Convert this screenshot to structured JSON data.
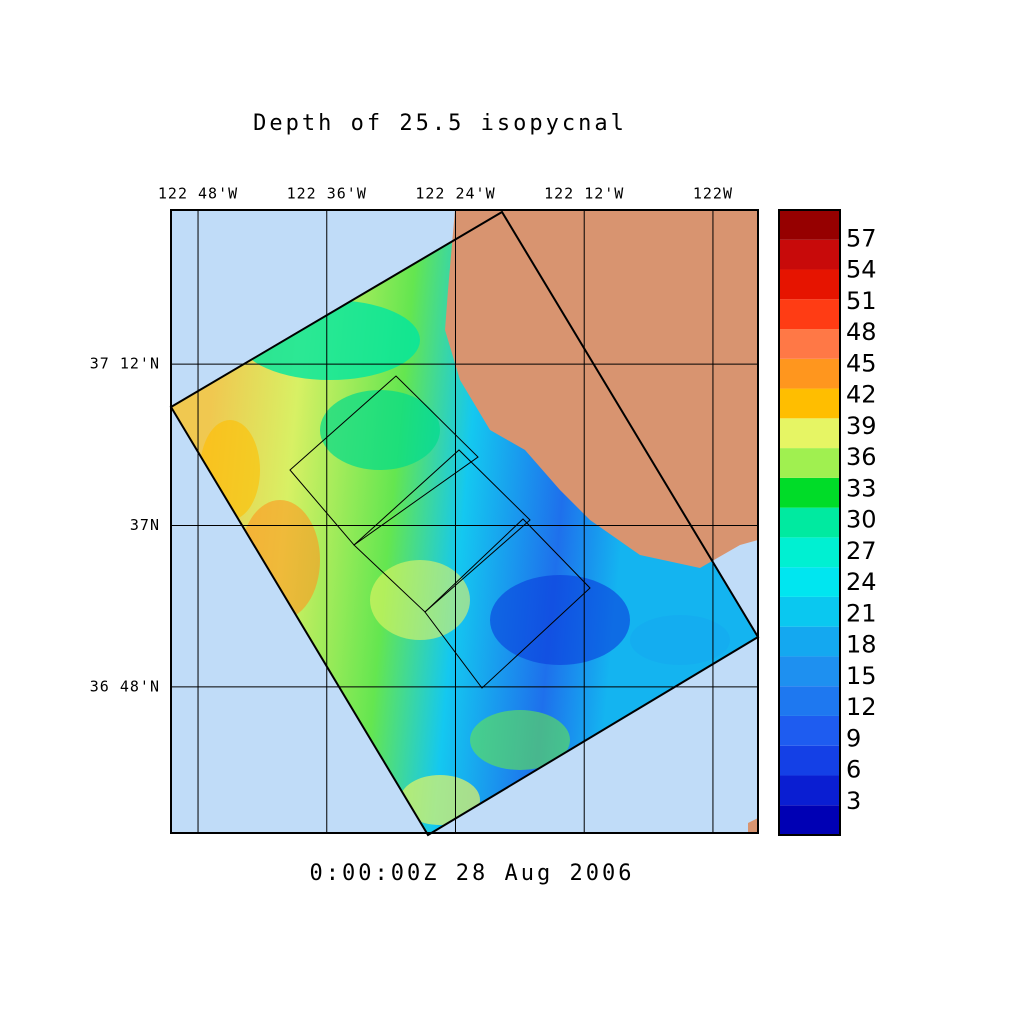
{
  "chart_data": {
    "type": "map",
    "title": "Depth of 25.5 isopycnal",
    "timestamp": "0:00:00Z  28 Aug 2006",
    "xlim": [
      -122.842,
      -121.93
    ],
    "ylim": [
      36.619,
      37.391
    ],
    "xticks": [
      {
        "value": -122.8,
        "label": "122 48'W"
      },
      {
        "value": -122.6,
        "label": "122 36'W"
      },
      {
        "value": -122.4,
        "label": "122 24'W"
      },
      {
        "value": -122.2,
        "label": "122 12'W"
      },
      {
        "value": -122.0,
        "label": "122W"
      }
    ],
    "yticks": [
      {
        "value": 37.2,
        "label": "37 12'N"
      },
      {
        "value": 37.0,
        "label": "37N"
      },
      {
        "value": 36.8,
        "label": "36 48'N"
      }
    ],
    "grid": true,
    "colorbar": {
      "lim": [
        0,
        60
      ],
      "ticks": [
        3,
        6,
        9,
        12,
        15,
        18,
        21,
        24,
        27,
        30,
        33,
        36,
        39,
        42,
        45,
        48,
        51,
        54,
        57
      ],
      "colors": [
        "#0000b4",
        "#0a1ed2",
        "#1440e6",
        "#1e5cf0",
        "#1e78f0",
        "#1e90f0",
        "#14a8f0",
        "#0ac8f0",
        "#00e6f0",
        "#00f0d2",
        "#00eaa0",
        "#00dc28",
        "#a0f050",
        "#e6f564",
        "#ffbe00",
        "#ff961e",
        "#ff7846",
        "#ff3c14",
        "#e61400",
        "#c80a0a",
        "#960000"
      ]
    }
  }
}
